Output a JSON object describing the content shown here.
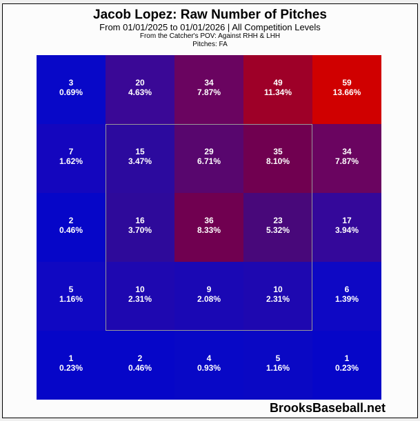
{
  "header": {
    "title": "Jacob Lopez: Raw Number of Pitches",
    "subtitle": "From 01/01/2025 to 01/01/2026 | All Competition Levels",
    "pov": "From the Catcher's POV:   Against RHH & LHH",
    "pitches": "Pitches:  FA"
  },
  "brand": "BrooksBaseball.net",
  "chart_data": {
    "type": "heatmap",
    "title": "Jacob Lopez: Raw Number of Pitches",
    "subtitle": "From 01/01/2025 to 01/01/2026 | All Competition Levels",
    "notes": [
      "From the Catcher's POV: Against RHH & LHH",
      "Pitches: FA"
    ],
    "rows": 5,
    "cols": 5,
    "strike_zone": "inner 3x3 (rows 2-4, cols 2-4)",
    "counts": [
      [
        3,
        20,
        34,
        49,
        59
      ],
      [
        7,
        15,
        29,
        35,
        34
      ],
      [
        2,
        16,
        36,
        23,
        17
      ],
      [
        5,
        10,
        9,
        10,
        6
      ],
      [
        1,
        2,
        4,
        5,
        1
      ]
    ],
    "percents": [
      [
        "0.69%",
        "4.63%",
        "7.87%",
        "11.34%",
        "13.66%"
      ],
      [
        "1.62%",
        "3.47%",
        "6.71%",
        "8.10%",
        "7.87%"
      ],
      [
        "0.46%",
        "3.70%",
        "8.33%",
        "5.32%",
        "3.94%"
      ],
      [
        "1.16%",
        "2.31%",
        "2.08%",
        "2.31%",
        "1.39%"
      ],
      [
        "0.23%",
        "0.46%",
        "0.93%",
        "1.16%",
        "0.23%"
      ]
    ],
    "colors": [
      [
        "#0808c8",
        "#3a0896",
        "#6a0460",
        "#9e0028",
        "#d00000"
      ],
      [
        "#1406be",
        "#2c0a9e",
        "#58066e",
        "#700050",
        "#6a0460"
      ],
      [
        "#0606c8",
        "#2e0a9a",
        "#700050",
        "#48087a",
        "#34089a"
      ],
      [
        "#1008c2",
        "#1e08b0",
        "#1a08b4",
        "#1e08b0",
        "#0e08c4"
      ],
      [
        "#0606c8",
        "#0606c8",
        "#0808c6",
        "#0a08c4",
        "#0606c8"
      ]
    ]
  }
}
